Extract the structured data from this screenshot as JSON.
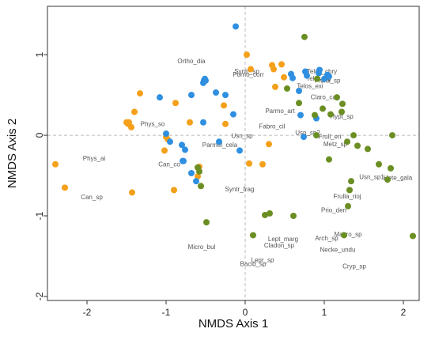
{
  "chart_data": {
    "type": "scatter",
    "title": "",
    "xlabel": "NMDS Axis 1",
    "ylabel": "NMDS Axis 2",
    "xlim": [
      -2.5,
      2.2
    ],
    "ylim": [
      -2.05,
      1.6
    ],
    "xticks": [
      -2,
      -1,
      0,
      1,
      2
    ],
    "yticks": [
      -2,
      -1,
      0,
      1
    ],
    "reference_lines": {
      "x": 0,
      "y": 0,
      "style": "dashed"
    },
    "grid": false,
    "legend": "none",
    "series": [
      {
        "color": "#f5a01a",
        "points": [
          [
            -2.4,
            -0.36
          ],
          [
            -2.28,
            -0.65
          ],
          [
            -1.5,
            0.16
          ],
          [
            -1.48,
            0.14
          ],
          [
            -1.47,
            0.16
          ],
          [
            -1.44,
            0.1
          ],
          [
            -1.43,
            -0.71
          ],
          [
            -1.4,
            0.29
          ],
          [
            -1.33,
            0.52
          ],
          [
            -1.02,
            -0.19
          ],
          [
            -1.0,
            -0.02
          ],
          [
            -0.98,
            -0.05
          ],
          [
            -0.9,
            -0.68
          ],
          [
            -0.88,
            0.4
          ],
          [
            -0.7,
            0.16
          ],
          [
            -0.6,
            -0.51
          ],
          [
            -0.58,
            -0.39
          ],
          [
            -0.27,
            0.37
          ],
          [
            -0.25,
            0.14
          ],
          [
            0.02,
            1.0
          ],
          [
            0.05,
            -0.35
          ],
          [
            0.07,
            0.82
          ],
          [
            0.22,
            -0.36
          ],
          [
            0.3,
            -0.11
          ],
          [
            0.34,
            0.87
          ],
          [
            0.36,
            0.82
          ],
          [
            0.38,
            0.6
          ],
          [
            0.46,
            0.88
          ],
          [
            0.49,
            0.72
          ]
        ]
      },
      {
        "color": "#2f8fe0",
        "points": [
          [
            -0.12,
            1.35
          ],
          [
            -1.08,
            0.47
          ],
          [
            -1.0,
            0.02
          ],
          [
            -0.95,
            -0.08
          ],
          [
            -0.8,
            -0.12
          ],
          [
            -0.78,
            -0.32
          ],
          [
            -0.76,
            -0.18
          ],
          [
            -0.79,
            -0.32
          ],
          [
            -0.68,
            -0.47
          ],
          [
            -0.62,
            -0.57
          ],
          [
            -0.68,
            0.5
          ],
          [
            -0.53,
            0.16
          ],
          [
            -0.53,
            0.65
          ],
          [
            -0.52,
            0.68
          ],
          [
            -0.51,
            0.7
          ],
          [
            -0.5,
            0.68
          ],
          [
            -0.37,
            0.53
          ],
          [
            -0.25,
            0.5
          ],
          [
            -0.15,
            0.26
          ],
          [
            -0.33,
            -0.08
          ],
          [
            -0.07,
            -0.19
          ],
          [
            0.58,
            0.76
          ],
          [
            0.6,
            0.71
          ],
          [
            0.68,
            0.55
          ],
          [
            0.76,
            0.79
          ],
          [
            0.78,
            0.74
          ],
          [
            0.7,
            0.25
          ],
          [
            0.74,
            -0.02
          ],
          [
            0.9,
            0.21
          ],
          [
            0.93,
            0.77
          ],
          [
            0.94,
            0.81
          ],
          [
            1.0,
            0.7
          ],
          [
            1.04,
            0.75
          ],
          [
            1.06,
            0.73
          ]
        ]
      },
      {
        "color": "#6b8e23",
        "points": [
          [
            0.75,
            1.22
          ],
          [
            0.53,
            0.58
          ],
          [
            0.68,
            0.4
          ],
          [
            0.98,
            0.33
          ],
          [
            0.88,
            0.25
          ],
          [
            0.91,
            0.7
          ],
          [
            1.08,
            0.26
          ],
          [
            1.16,
            0.47
          ],
          [
            1.23,
            0.39
          ],
          [
            1.22,
            0.29
          ],
          [
            0.9,
            0.0
          ],
          [
            1.06,
            -0.3
          ],
          [
            1.29,
            -0.08
          ],
          [
            1.37,
            0.0
          ],
          [
            1.42,
            -0.13
          ],
          [
            1.55,
            -0.17
          ],
          [
            1.86,
            0.0
          ],
          [
            1.34,
            -0.57
          ],
          [
            1.32,
            -0.68
          ],
          [
            1.3,
            -0.88
          ],
          [
            1.69,
            -0.36
          ],
          [
            1.84,
            -0.41
          ],
          [
            1.8,
            -0.55
          ],
          [
            -0.6,
            -0.4
          ],
          [
            -0.58,
            -0.45
          ],
          [
            -0.56,
            -0.63
          ],
          [
            -0.49,
            -1.08
          ],
          [
            0.1,
            -1.24
          ],
          [
            0.25,
            -0.99
          ],
          [
            0.31,
            -0.97
          ],
          [
            0.61,
            -1.0
          ],
          [
            1.25,
            -1.24
          ],
          [
            2.12,
            -1.25
          ]
        ]
      }
    ],
    "species_labels": [
      {
        "text": "Ortho_dia",
        "x": -0.68,
        "y": 0.92
      },
      {
        "text": "Syntr_sp",
        "x": 0.02,
        "y": 0.79
      },
      {
        "text": "Porno_corr",
        "x": 0.04,
        "y": 0.75
      },
      {
        "text": "Telos_chry",
        "x": 0.97,
        "y": 0.79
      },
      {
        "text": "Telos_sp",
        "x": 0.93,
        "y": 0.7
      },
      {
        "text": "Frulla_sp",
        "x": 1.04,
        "y": 0.68
      },
      {
        "text": "Telos_exi",
        "x": 0.82,
        "y": 0.61
      },
      {
        "text": "Claro_can",
        "x": 1.01,
        "y": 0.47
      },
      {
        "text": "Parmo_art",
        "x": 0.44,
        "y": 0.3
      },
      {
        "text": "Hypt_sp",
        "x": 1.22,
        "y": 0.23
      },
      {
        "text": "Phys_so",
        "x": -1.17,
        "y": 0.14
      },
      {
        "text": "Fabro_cil",
        "x": 0.34,
        "y": 0.11
      },
      {
        "text": "Usn_sp2",
        "x": 0.79,
        "y": 0.03
      },
      {
        "text": "Frull_eri",
        "x": 1.07,
        "y": -0.02
      },
      {
        "text": "Usn_sp",
        "x": -0.04,
        "y": -0.01
      },
      {
        "text": "Metz_sp",
        "x": 1.14,
        "y": -0.11
      },
      {
        "text": "Parmel_cela",
        "x": -0.32,
        "y": -0.12
      },
      {
        "text": "Phys_ai",
        "x": -1.91,
        "y": -0.29
      },
      {
        "text": "Can_co",
        "x": -0.96,
        "y": -0.36
      },
      {
        "text": "Usn_sp1",
        "x": 1.6,
        "y": -0.52
      },
      {
        "text": "Hete_gala",
        "x": 1.93,
        "y": -0.53
      },
      {
        "text": "Syntr_frag",
        "x": -0.07,
        "y": -0.67
      },
      {
        "text": "Can_sp",
        "x": -1.94,
        "y": -0.77
      },
      {
        "text": "Frulla_rioj",
        "x": 1.29,
        "y": -0.76
      },
      {
        "text": "Prio_den",
        "x": 1.12,
        "y": -0.93
      },
      {
        "text": "Lept_marg",
        "x": 0.48,
        "y": -1.29
      },
      {
        "text": "Macro_sp",
        "x": 1.3,
        "y": -1.23
      },
      {
        "text": "Arch_sp",
        "x": 1.03,
        "y": -1.28
      },
      {
        "text": "Micro_bul",
        "x": -0.55,
        "y": -1.39
      },
      {
        "text": "Cladon_sp",
        "x": 0.43,
        "y": -1.37
      },
      {
        "text": "Necke_undu",
        "x": 1.17,
        "y": -1.42
      },
      {
        "text": "Lepr_sp",
        "x": 0.22,
        "y": -1.55
      },
      {
        "text": "Bacid_sp",
        "x": 0.1,
        "y": -1.6
      },
      {
        "text": "Cryp_sp",
        "x": 1.38,
        "y": -1.63
      }
    ]
  }
}
